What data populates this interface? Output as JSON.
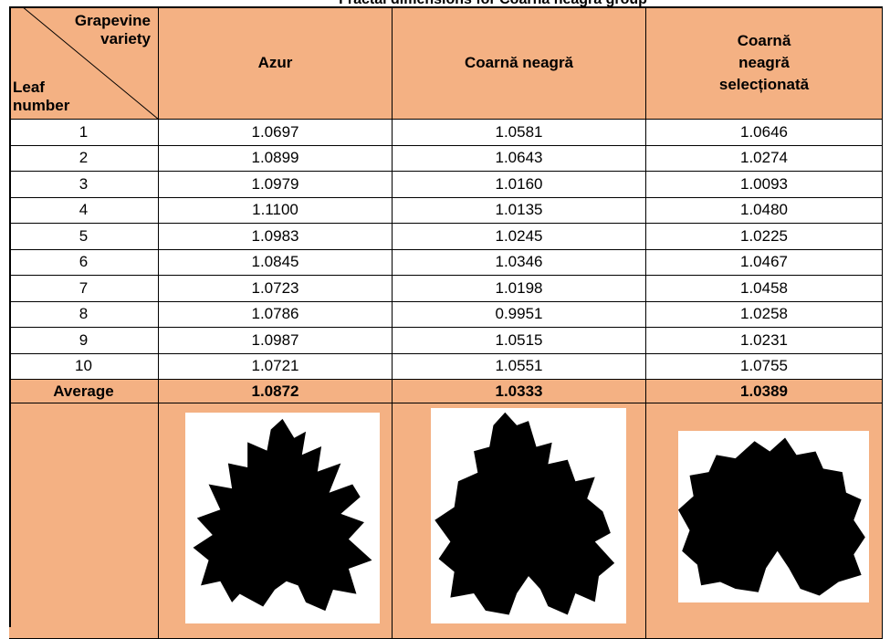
{
  "title": "Fractal dimensions for Coarnă neagră group",
  "table": {
    "corner_top": "Grapevine variety",
    "corner_bottom": "Leaf number",
    "columns": [
      "Azur",
      "Coarnă neagră",
      "Coarnă neagră selecționată"
    ],
    "rows": [
      [
        "1",
        "1.0697",
        "1.0581",
        "1.0646"
      ],
      [
        "2",
        "1.0899",
        "1.0643",
        "1.0274"
      ],
      [
        "3",
        "1.0979",
        "1.0160",
        "1.0093"
      ],
      [
        "4",
        "1.1100",
        "1.0135",
        "1.0480"
      ],
      [
        "5",
        "1.0983",
        "1.0245",
        "1.0225"
      ],
      [
        "6",
        "1.0845",
        "1.0346",
        "1.0467"
      ],
      [
        "7",
        "1.0723",
        "1.0198",
        "1.0458"
      ],
      [
        "8",
        "1.0786",
        "0.9951",
        "1.0258"
      ],
      [
        "9",
        "1.0987",
        "1.0515",
        "1.0231"
      ],
      [
        "10",
        "1.0721",
        "1.0551",
        "1.0755"
      ]
    ],
    "average": [
      "Average",
      "1.0872",
      "1.0333",
      "1.0389"
    ]
  }
}
